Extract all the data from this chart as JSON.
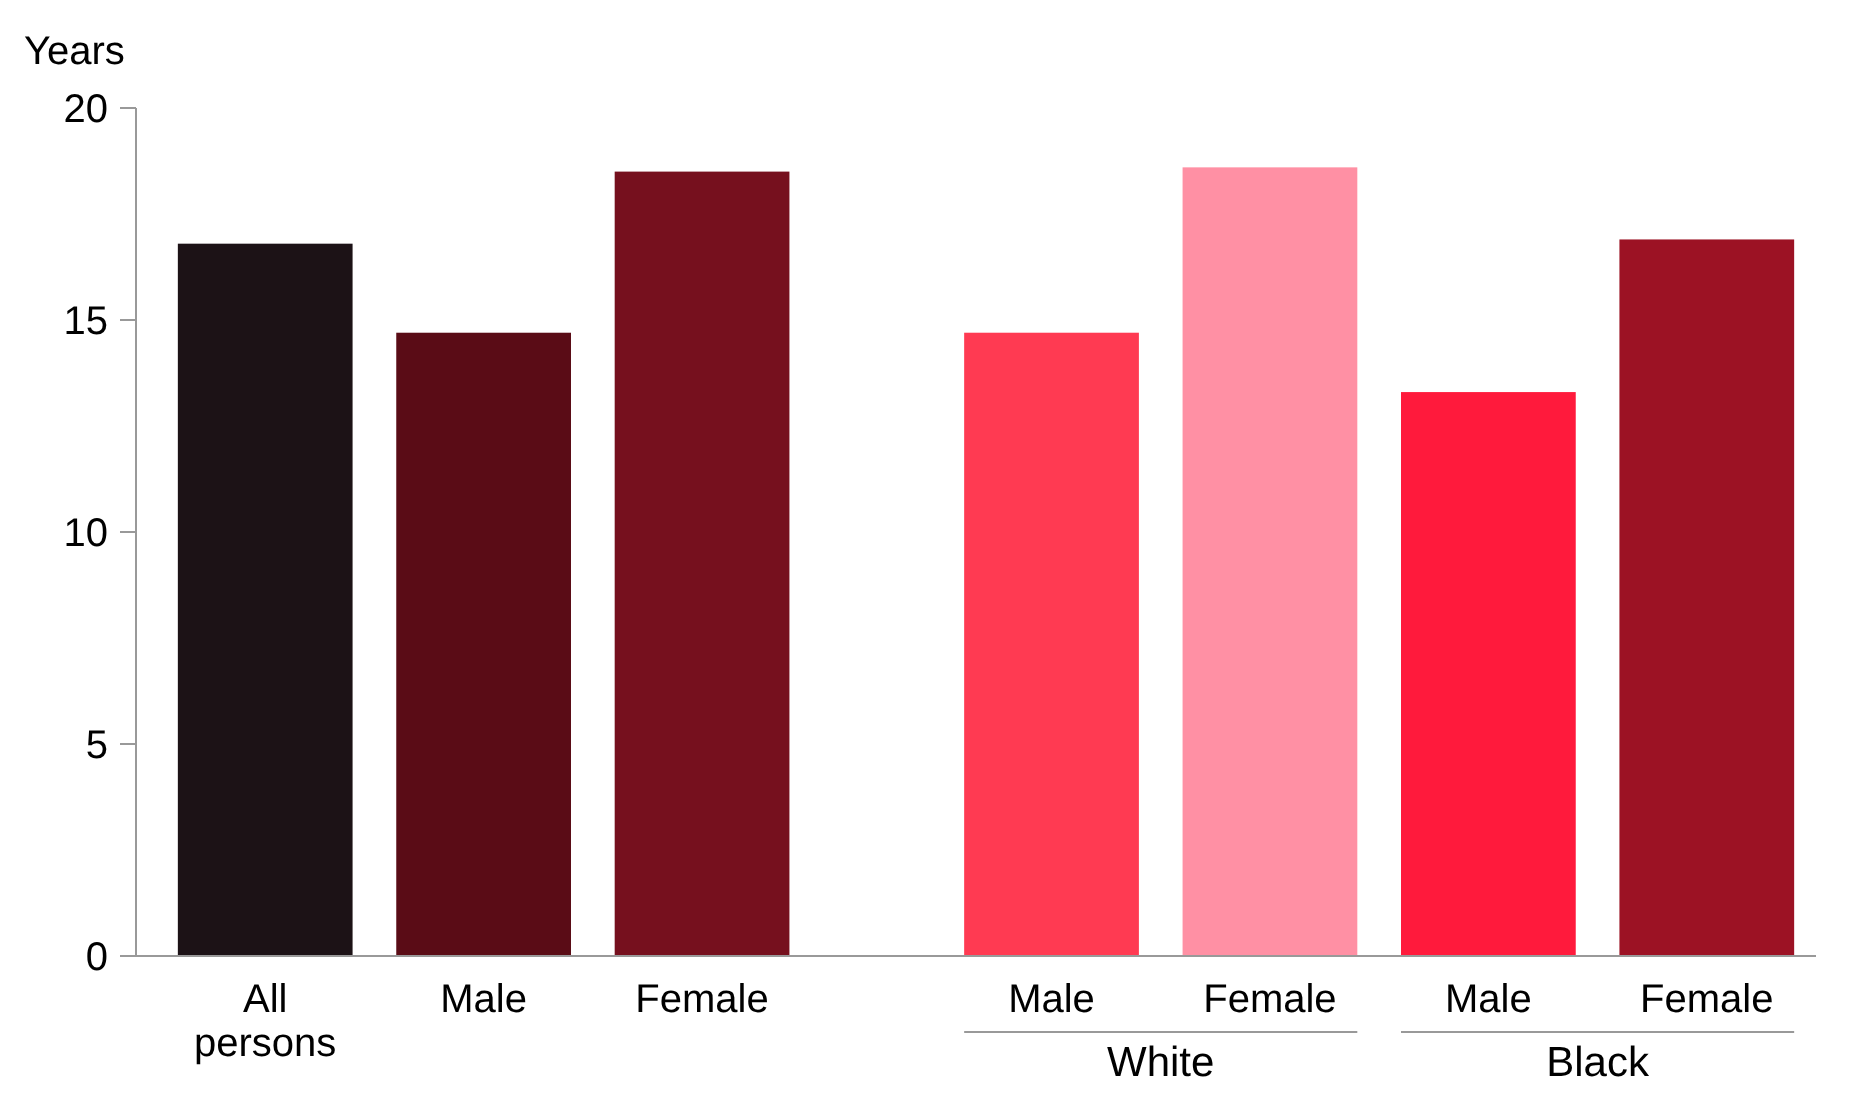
{
  "chart_data": {
    "type": "bar",
    "ylabel": "Years",
    "categories": [
      "All persons",
      "Male",
      "Female",
      "Male",
      "Female",
      "Male",
      "Female"
    ],
    "values": [
      16.8,
      14.7,
      18.5,
      14.7,
      18.6,
      13.3,
      16.9
    ],
    "colors": [
      "#1c1216",
      "#5a0c16",
      "#76101e",
      "#ff3a52",
      "#ff90a4",
      "#ff1a3c",
      "#9c1224"
    ],
    "ylim": [
      0,
      20
    ],
    "yticks": [
      0,
      5,
      10,
      15,
      20
    ],
    "grid": false,
    "annotations": [
      "White",
      "Black"
    ]
  }
}
